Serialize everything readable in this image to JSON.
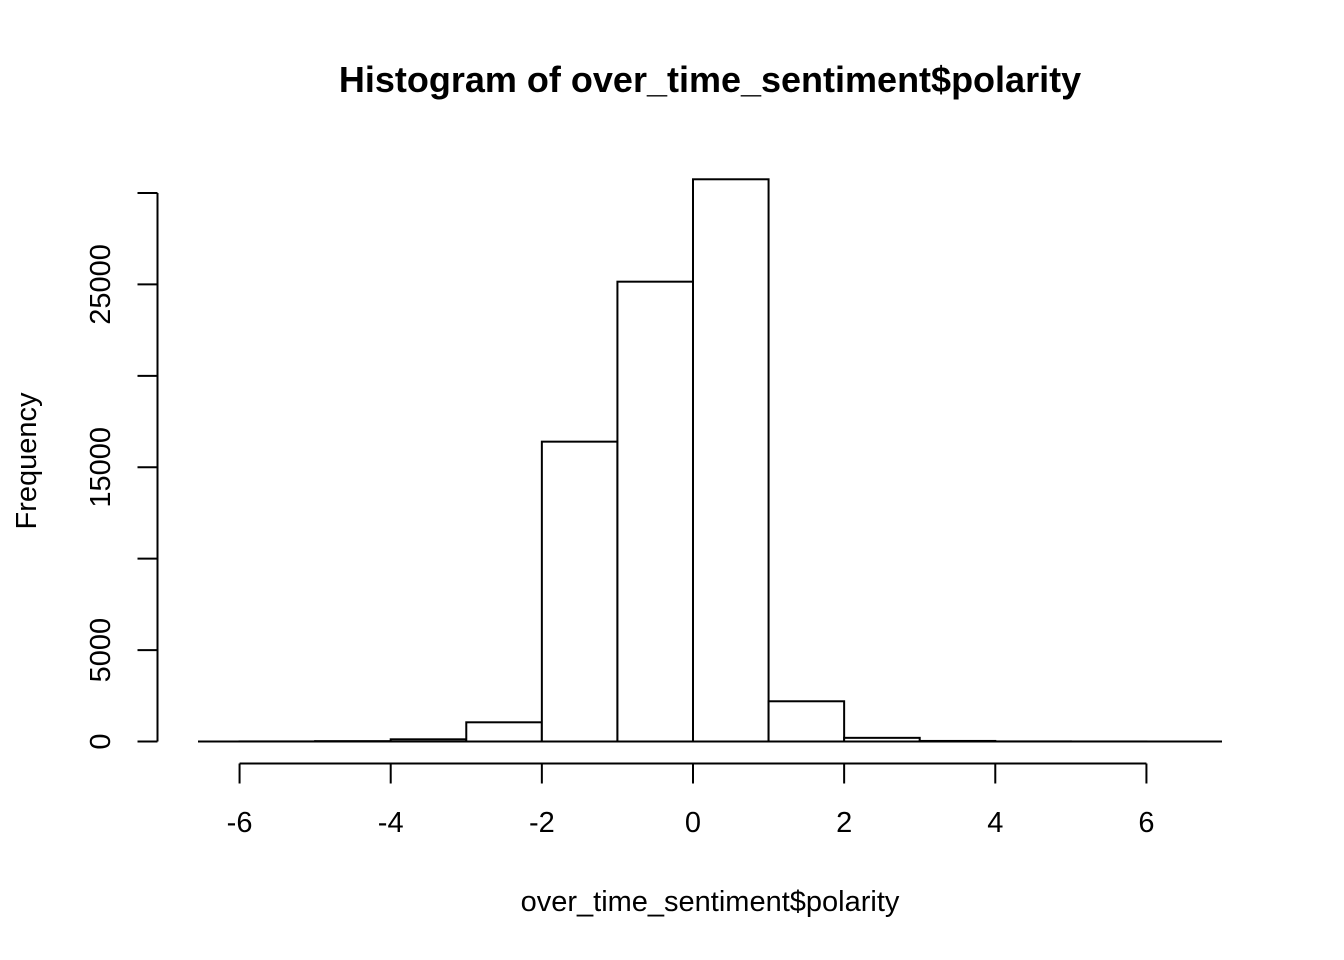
{
  "chart_data": {
    "type": "bar",
    "title": "Histogram of over_time_sentiment$polarity",
    "xlabel": "over_time_sentiment$polarity",
    "ylabel": "Frequency",
    "bins": [
      {
        "x0": -6,
        "x1": -5,
        "count": 5
      },
      {
        "x0": -5,
        "x1": -4,
        "count": 20
      },
      {
        "x0": -4,
        "x1": -3,
        "count": 120
      },
      {
        "x0": -3,
        "x1": -2,
        "count": 1050
      },
      {
        "x0": -2,
        "x1": -1,
        "count": 16400
      },
      {
        "x0": -1,
        "x1": 0,
        "count": 25150
      },
      {
        "x0": 0,
        "x1": 1,
        "count": 30750
      },
      {
        "x0": 1,
        "x1": 2,
        "count": 2200
      },
      {
        "x0": 2,
        "x1": 3,
        "count": 200
      },
      {
        "x0": 3,
        "x1": 4,
        "count": 30
      },
      {
        "x0": 4,
        "x1": 5,
        "count": 5
      },
      {
        "x0": 5,
        "x1": 6,
        "count": 2
      }
    ],
    "xlim": [
      -6.55,
      7
    ],
    "ylim": [
      0,
      30000
    ],
    "x_ticks": [
      -6,
      -4,
      -2,
      0,
      2,
      4,
      6
    ],
    "x_tick_labels": [
      "-6",
      "-4",
      "-2",
      "0",
      "2",
      "4",
      "6"
    ],
    "y_ticks": [
      0,
      5000,
      10000,
      15000,
      20000,
      25000,
      30000
    ],
    "y_tick_labels": [
      "0",
      "5000",
      "",
      "15000",
      "",
      "25000",
      ""
    ],
    "grid": false,
    "legend": "none"
  }
}
